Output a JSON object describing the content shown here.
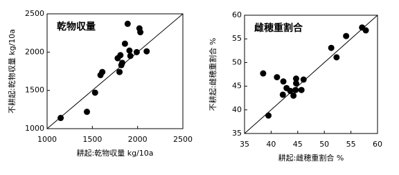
{
  "chart_data": [
    {
      "type": "scatter",
      "title": "乾物収量",
      "x_label": "耕起:乾物収量 kg/10a",
      "y_label": "不耕起:乾物収量 kg/10a",
      "x": [
        1150,
        1440,
        1530,
        1590,
        1610,
        1780,
        1800,
        1810,
        1820,
        1830,
        1860,
        1890,
        1910,
        1920,
        1990,
        2020,
        2030,
        2100
      ],
      "y": [
        1140,
        1220,
        1470,
        1700,
        1740,
        1920,
        1740,
        1960,
        1830,
        1860,
        2110,
        2370,
        2020,
        1950,
        2000,
        2310,
        2260,
        2010
      ],
      "color": "#000000",
      "xlim": [
        1000,
        2500
      ],
      "ylim": [
        1000,
        2500
      ],
      "xticks": [
        1000,
        1500,
        2000,
        2500
      ],
      "yticks": [
        1000,
        1500,
        2000,
        2500
      ],
      "diagonal": true
    },
    {
      "type": "scatter",
      "title": "雌穂重割合",
      "x_label": "耕起:雌穂重割合 %",
      "y_label": "不耕起:雌穂重割合 %",
      "x": [
        38.5,
        39.5,
        41.1,
        42.3,
        42.2,
        42.9,
        43.6,
        44.2,
        44.6,
        44.7,
        44.7,
        45.7,
        46.1,
        51.3,
        52.3,
        54.1,
        57.1,
        57.8
      ],
      "y": [
        47.7,
        38.8,
        46.9,
        46.0,
        43.2,
        44.6,
        44.0,
        43.0,
        44.2,
        46.6,
        45.6,
        44.2,
        46.4,
        53.1,
        51.1,
        55.6,
        57.4,
        56.8
      ],
      "color": "#000000",
      "xlim": [
        35,
        60
      ],
      "ylim": [
        35,
        60
      ],
      "xticks": [
        35,
        40,
        45,
        50,
        55,
        60
      ],
      "yticks": [
        35,
        40,
        45,
        50,
        55,
        60
      ],
      "diagonal": true
    }
  ]
}
